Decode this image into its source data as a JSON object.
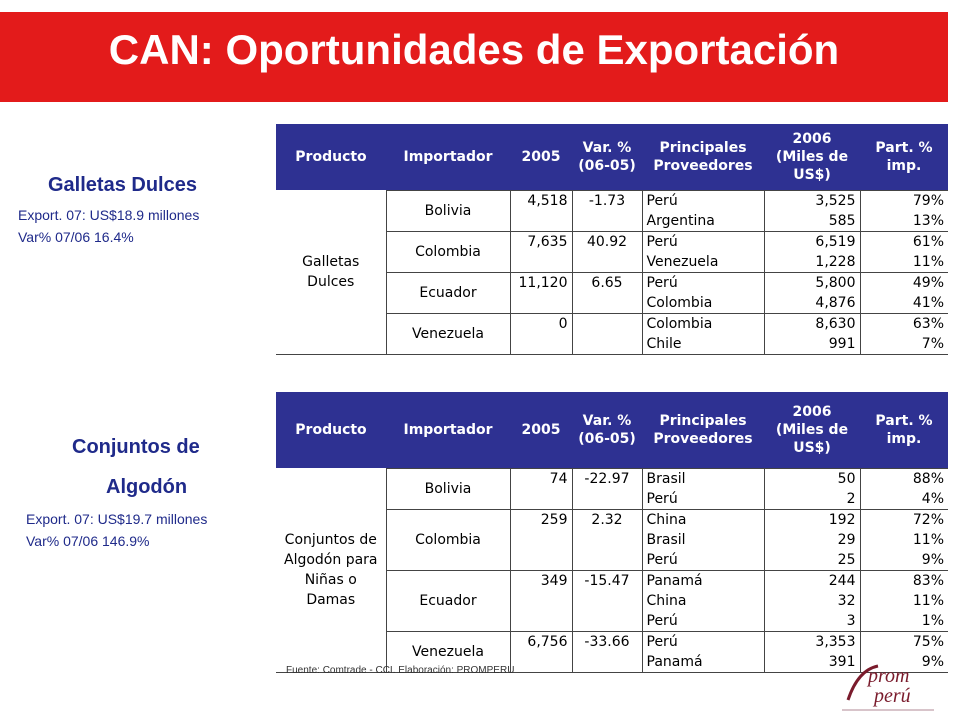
{
  "title": "CAN: Oportunidades de Exportación",
  "colors": {
    "banner": "#e31b1b",
    "table_header": "#2e3192",
    "side_text": "#1f2a8a"
  },
  "headers": [
    "Producto",
    "Importador",
    "2005",
    "Var. %\n(06-05)",
    "Principales\nProveedores",
    "2006\n(Miles de\nUS$)",
    "Part. %\nimp."
  ],
  "galletas": {
    "title": "Galletas Dulces",
    "export": "Export. 07: US$18.9 millones",
    "var": "Var% 07/06 16.4%",
    "product": "Galletas\nDulces",
    "rows": [
      {
        "importer": "Bolivia",
        "y2005": "4,518",
        "var": "-1.73",
        "supplier": "Perú",
        "y2006": "3,525",
        "part": "79%"
      },
      {
        "importer": "",
        "y2005": "",
        "var": "",
        "supplier": "Argentina",
        "y2006": "585",
        "part": "13%"
      },
      {
        "importer": "Colombia",
        "y2005": "7,635",
        "var": "40.92",
        "supplier": "Perú",
        "y2006": "6,519",
        "part": "61%"
      },
      {
        "importer": "",
        "y2005": "",
        "var": "",
        "supplier": "Venezuela",
        "y2006": "1,228",
        "part": "11%"
      },
      {
        "importer": "Ecuador",
        "y2005": "11,120",
        "var": "6.65",
        "supplier": "Perú",
        "y2006": "5,800",
        "part": "49%"
      },
      {
        "importer": "",
        "y2005": "",
        "var": "",
        "supplier": "Colombia",
        "y2006": "4,876",
        "part": "41%"
      },
      {
        "importer": "Venezuela",
        "y2005": "0",
        "var": "",
        "supplier": "Colombia",
        "y2006": "8,630",
        "part": "63%"
      },
      {
        "importer": "",
        "y2005": "",
        "var": "",
        "supplier": "Chile",
        "y2006": "991",
        "part": "7%"
      }
    ]
  },
  "conjuntos": {
    "title_line1": "Conjuntos de",
    "title_line2": "Algodón",
    "export": "Export. 07: US$19.7 millones",
    "var": "Var% 07/06 146.9%",
    "product": "Conjuntos de\nAlgodón para\nNiñas o\nDamas",
    "rows": [
      {
        "importer": "Bolivia",
        "y2005": "74",
        "var": "-22.97",
        "supplier": "Brasil",
        "y2006": "50",
        "part": "88%"
      },
      {
        "importer": "",
        "y2005": "",
        "var": "",
        "supplier": "Perú",
        "y2006": "2",
        "part": "4%"
      },
      {
        "importer": "Colombia",
        "y2005": "259",
        "var": "2.32",
        "supplier": "China",
        "y2006": "192",
        "part": "72%"
      },
      {
        "importer": "",
        "y2005": "",
        "var": "",
        "supplier": "Brasil",
        "y2006": "29",
        "part": "11%"
      },
      {
        "importer": "",
        "y2005": "",
        "var": "",
        "supplier": "Perú",
        "y2006": "25",
        "part": "9%"
      },
      {
        "importer": "Ecuador",
        "y2005": "349",
        "var": "-15.47",
        "supplier": "Panamá",
        "y2006": "244",
        "part": "83%"
      },
      {
        "importer": "",
        "y2005": "",
        "var": "",
        "supplier": "China",
        "y2006": "32",
        "part": "11%"
      },
      {
        "importer": "",
        "y2005": "",
        "var": "",
        "supplier": "Perú",
        "y2006": "3",
        "part": "1%"
      },
      {
        "importer": "Venezuela",
        "y2005": "6,756",
        "var": "-33.66",
        "supplier": "Perú",
        "y2006": "3,353",
        "part": "75%"
      },
      {
        "importer": "",
        "y2005": "",
        "var": "",
        "supplier": "Panamá",
        "y2006": "391",
        "part": "9%"
      }
    ]
  },
  "source": "Fuente: Comtrade - CCI.  Elaboración: PROMPERU",
  "logo": {
    "line1": "prom",
    "line2": "perú",
    "icon": "promperu-logo"
  }
}
